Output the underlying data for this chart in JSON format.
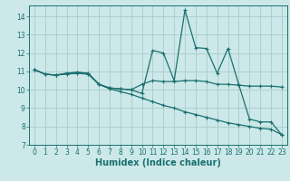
{
  "title": "",
  "xlabel": "Humidex (Indice chaleur)",
  "bg_color": "#cce8e8",
  "grid_color": "#aacccc",
  "line_color": "#1a7070",
  "xlim": [
    -0.5,
    23.5
  ],
  "ylim": [
    7,
    14.6
  ],
  "yticks": [
    7,
    8,
    9,
    10,
    11,
    12,
    13,
    14
  ],
  "xticks": [
    0,
    1,
    2,
    3,
    4,
    5,
    6,
    7,
    8,
    9,
    10,
    11,
    12,
    13,
    14,
    15,
    16,
    17,
    18,
    19,
    20,
    21,
    22,
    23
  ],
  "series1_x": [
    0,
    1,
    2,
    3,
    4,
    5,
    6,
    7,
    8,
    9,
    10,
    11,
    12,
    13,
    14,
    15,
    16,
    17,
    18,
    19,
    20,
    21,
    22,
    23
  ],
  "series1_y": [
    11.1,
    10.85,
    10.8,
    10.9,
    10.95,
    10.9,
    10.3,
    10.1,
    10.05,
    10.0,
    9.8,
    12.15,
    12.0,
    10.5,
    14.35,
    12.3,
    12.25,
    10.9,
    12.25,
    10.3,
    8.4,
    8.25,
    8.25,
    7.55
  ],
  "series2_x": [
    0,
    1,
    2,
    3,
    4,
    5,
    6,
    7,
    8,
    9,
    10,
    11,
    12,
    13,
    14,
    15,
    16,
    17,
    18,
    19,
    20,
    21,
    22,
    23
  ],
  "series2_y": [
    11.1,
    10.85,
    10.8,
    10.9,
    10.95,
    10.9,
    10.3,
    10.1,
    10.05,
    10.0,
    10.3,
    10.5,
    10.45,
    10.45,
    10.5,
    10.5,
    10.45,
    10.3,
    10.3,
    10.25,
    10.2,
    10.2,
    10.2,
    10.15
  ],
  "series3_x": [
    0,
    1,
    2,
    3,
    4,
    5,
    6,
    7,
    8,
    9,
    10,
    11,
    12,
    13,
    14,
    15,
    16,
    17,
    18,
    19,
    20,
    21,
    22,
    23
  ],
  "series3_y": [
    11.1,
    10.85,
    10.8,
    10.85,
    10.9,
    10.85,
    10.3,
    10.05,
    9.9,
    9.75,
    9.55,
    9.35,
    9.15,
    9.0,
    8.8,
    8.65,
    8.5,
    8.35,
    8.2,
    8.1,
    8.0,
    7.9,
    7.85,
    7.55
  ],
  "marker": "+",
  "markersize": 3.5,
  "linewidth": 0.9,
  "tick_fontsize": 5.5,
  "label_fontsize": 7.0
}
